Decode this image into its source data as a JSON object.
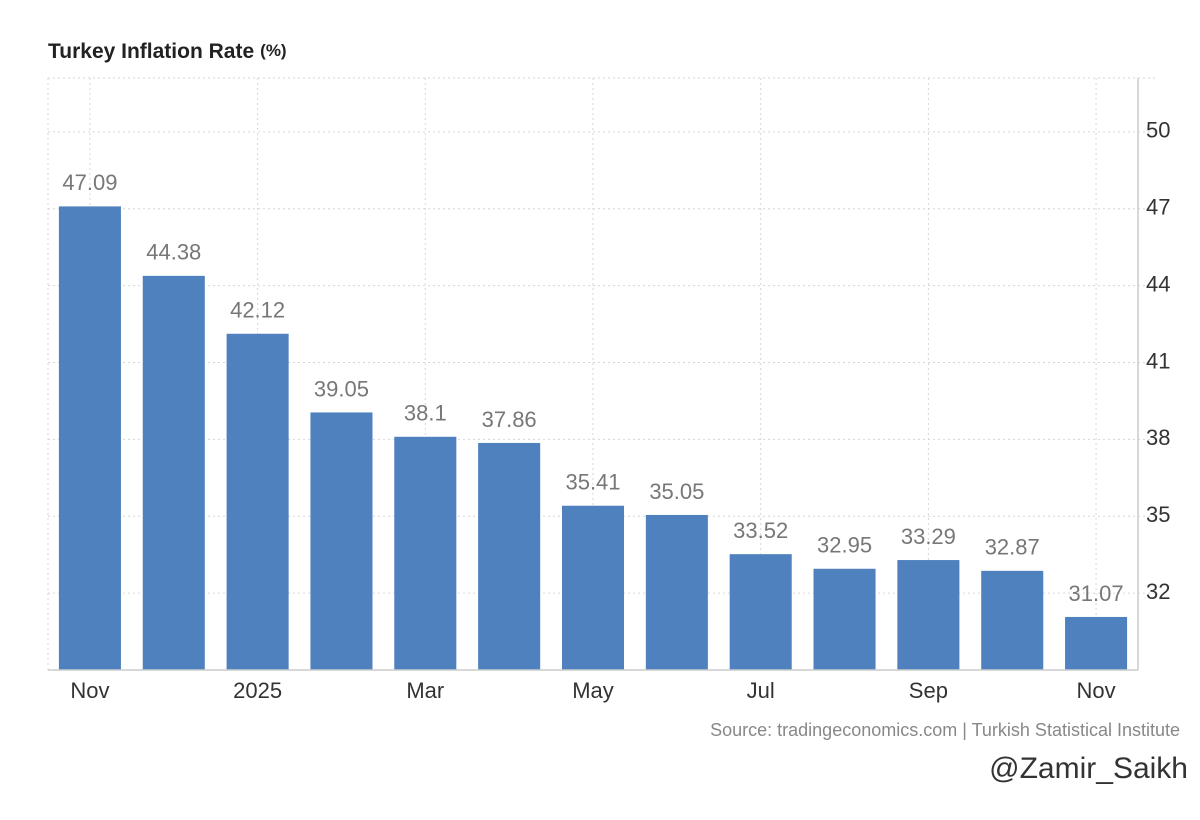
{
  "chart_data": {
    "type": "bar",
    "title": "Turkey Inflation Rate",
    "title_unit": "(%)",
    "categories": [
      "Nov",
      null,
      "2025",
      null,
      "Mar",
      null,
      "May",
      null,
      "Jul",
      null,
      "Sep",
      null,
      "Nov"
    ],
    "values": [
      47.09,
      44.38,
      42.12,
      39.05,
      38.1,
      37.86,
      35.41,
      35.05,
      33.52,
      32.95,
      33.29,
      32.87,
      31.07
    ],
    "color": "#4e81bd",
    "ylim": [
      29,
      52.1
    ],
    "yticks": [
      32,
      35,
      38,
      41,
      44,
      47,
      50
    ],
    "grid": true,
    "y_axis_side": "right",
    "source": "Source: tradingeconomics.com | Turkish Statistical Institute",
    "watermark": "@Zamir_Saikh"
  }
}
